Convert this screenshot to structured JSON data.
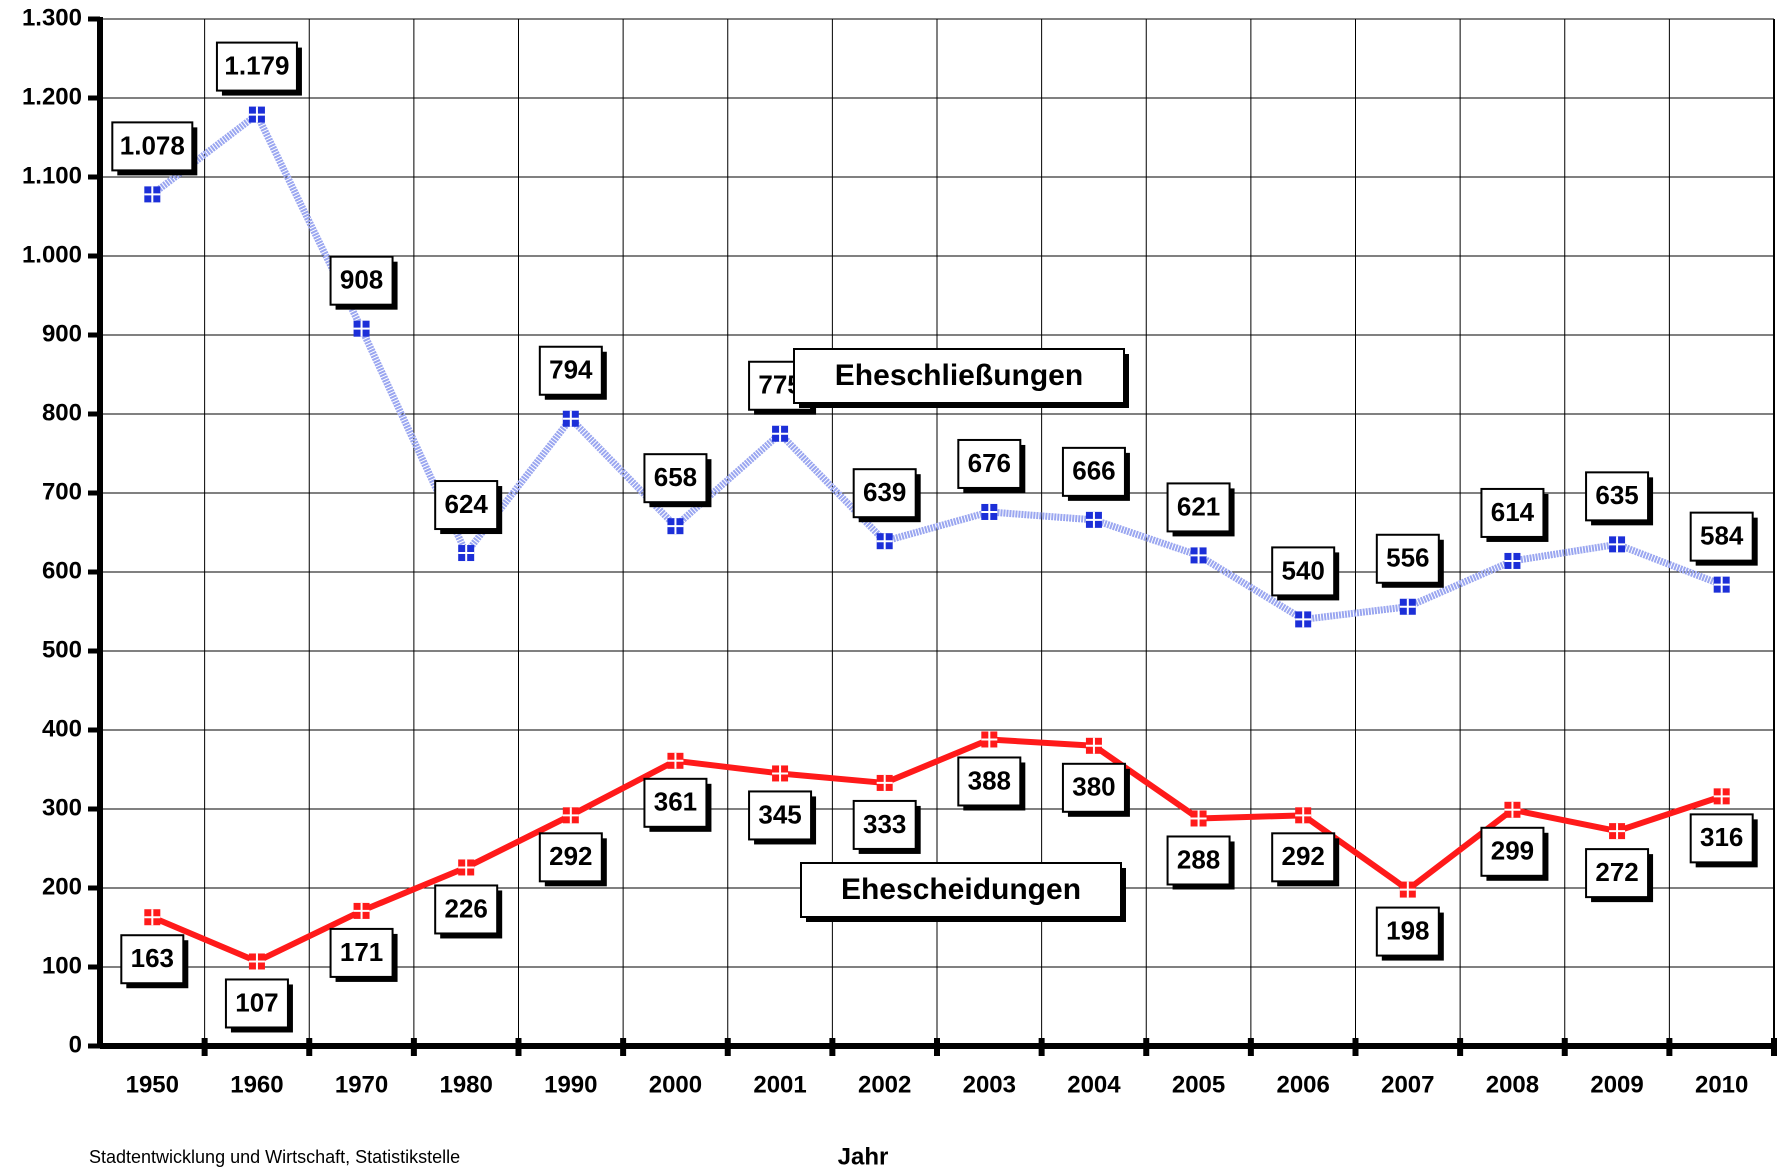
{
  "chart_data": {
    "type": "line",
    "categories": [
      "1950",
      "1960",
      "1970",
      "1980",
      "1990",
      "2000",
      "2001",
      "2002",
      "2003",
      "2004",
      "2005",
      "2006",
      "2007",
      "2008",
      "2009",
      "2010"
    ],
    "series": [
      {
        "name": "Eheschließungen",
        "color": "#9aa6f0",
        "marker_color": "#1c2fd8",
        "values": [
          1078,
          1179,
          908,
          624,
          794,
          658,
          775,
          639,
          676,
          666,
          621,
          540,
          556,
          614,
          635,
          584
        ],
        "value_labels": [
          "1.078",
          "1.179",
          "908",
          "624",
          "794",
          "658",
          "775",
          "639",
          "676",
          "666",
          "621",
          "540",
          "556",
          "614",
          "635",
          "584"
        ]
      },
      {
        "name": "Ehescheidungen",
        "color": "#ff1a1a",
        "marker_color": "#ff1a1a",
        "values": [
          163,
          107,
          171,
          226,
          292,
          361,
          345,
          333,
          388,
          380,
          288,
          292,
          198,
          299,
          272,
          316
        ]
      }
    ],
    "ylim": [
      0,
      1300
    ],
    "yticks": [
      0,
      100,
      200,
      300,
      400,
      500,
      600,
      700,
      800,
      900,
      {
        "value": 1000,
        "label": "1.000"
      },
      {
        "value": 1100,
        "label": "1.100"
      },
      {
        "value": 1200,
        "label": "1.200"
      },
      {
        "value": 1300,
        "label": "1.300"
      }
    ],
    "grid": true,
    "xlabel": "Jahr",
    "source": "Stadtentwicklung und Wirtschaft, Statistikstelle"
  }
}
